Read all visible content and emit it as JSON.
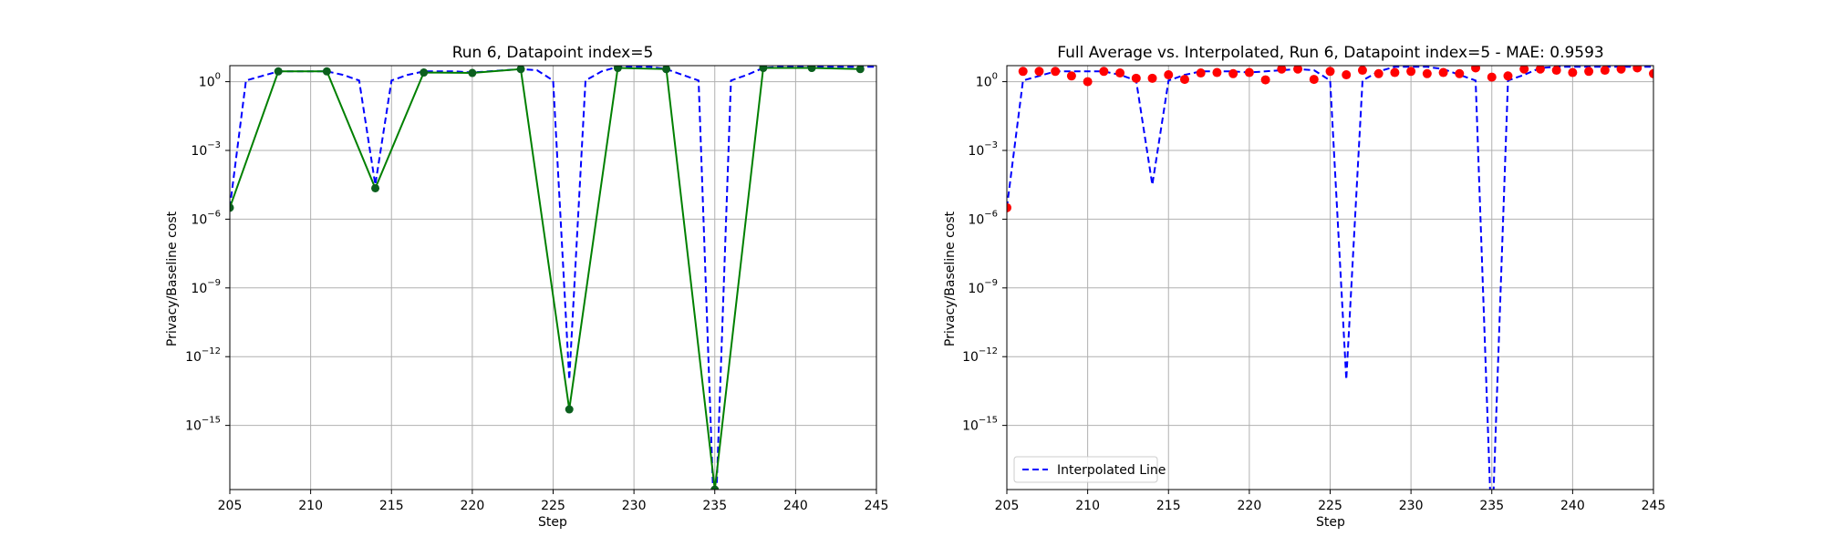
{
  "chart_data": [
    {
      "type": "line",
      "title": "Run 6, Datapoint index=5",
      "xlabel": "Step",
      "ylabel": "Privacy/Baseline cost",
      "yscale": "log",
      "xlim": [
        205,
        245
      ],
      "ylim_exp": [
        -17.8,
        0.7
      ],
      "xticks": [
        "205",
        "210",
        "215",
        "220",
        "225",
        "230",
        "235",
        "240",
        "245"
      ],
      "yticks": [
        {
          "base": "10",
          "exp": "0"
        },
        {
          "base": "10",
          "exp": "−3"
        },
        {
          "base": "10",
          "exp": "−6"
        },
        {
          "base": "10",
          "exp": "−9"
        },
        {
          "base": "10",
          "exp": "−12"
        },
        {
          "base": "10",
          "exp": "−15"
        }
      ],
      "grid": true,
      "series": [
        {
          "style": "dashed",
          "color": "#0000ff",
          "x": [
            205,
            206,
            207,
            208,
            209,
            210,
            211,
            212,
            213,
            214,
            215,
            216,
            217,
            218,
            219,
            220,
            221,
            222,
            223,
            224,
            225,
            226,
            227,
            228,
            229,
            230,
            231,
            232,
            233,
            234,
            235,
            236,
            237,
            238,
            239,
            240,
            241,
            242,
            243,
            244,
            245
          ],
          "log10_y": [
            -5.5,
            0.05,
            0.25,
            0.45,
            0.45,
            0.45,
            0.45,
            0.3,
            0.05,
            -4.5,
            0.05,
            0.3,
            0.45,
            0.45,
            0.45,
            0.4,
            0.45,
            0.5,
            0.55,
            0.5,
            0.05,
            -13.0,
            0.05,
            0.45,
            0.65,
            0.65,
            0.65,
            0.55,
            0.3,
            0.05,
            -20,
            0.05,
            0.3,
            0.6,
            0.65,
            0.65,
            0.65,
            0.65,
            0.65,
            0.65,
            0.65
          ]
        },
        {
          "style": "solid-markers",
          "color": "#008000",
          "marker_color": "#0b5f1e",
          "x": [
            205,
            208,
            211,
            214,
            217,
            220,
            223,
            226,
            229,
            232,
            235,
            238,
            241,
            244
          ],
          "log10_y": [
            -5.5,
            0.45,
            0.45,
            -4.65,
            0.4,
            0.38,
            0.55,
            -14.3,
            0.6,
            0.55,
            -17.8,
            0.6,
            0.6,
            0.55
          ]
        }
      ]
    },
    {
      "type": "line",
      "title": "Full Average vs. Interpolated, Run 6, Datapoint index=5 - MAE: 0.9593",
      "xlabel": "Step",
      "ylabel": "Privacy/Baseline cost",
      "yscale": "log",
      "xlim": [
        205,
        245
      ],
      "ylim_exp": [
        -17.8,
        0.7
      ],
      "xticks": [
        "205",
        "210",
        "215",
        "220",
        "225",
        "230",
        "235",
        "240",
        "245"
      ],
      "yticks": [
        {
          "base": "10",
          "exp": "0"
        },
        {
          "base": "10",
          "exp": "−3"
        },
        {
          "base": "10",
          "exp": "−6"
        },
        {
          "base": "10",
          "exp": "−9"
        },
        {
          "base": "10",
          "exp": "−12"
        },
        {
          "base": "10",
          "exp": "−15"
        }
      ],
      "grid": true,
      "legend": {
        "position": "lower-left",
        "label": "Interpolated Line"
      },
      "series": [
        {
          "name": "Interpolated Line",
          "style": "dashed",
          "color": "#0000ff",
          "x": [
            205,
            206,
            207,
            208,
            209,
            210,
            211,
            212,
            213,
            214,
            215,
            216,
            217,
            218,
            219,
            220,
            221,
            222,
            223,
            224,
            225,
            226,
            227,
            228,
            229,
            230,
            231,
            232,
            233,
            234,
            235,
            236,
            237,
            238,
            239,
            240,
            241,
            242,
            243,
            244,
            245
          ],
          "log10_y": [
            -5.5,
            0.05,
            0.25,
            0.45,
            0.45,
            0.45,
            0.45,
            0.3,
            0.05,
            -4.5,
            0.05,
            0.3,
            0.45,
            0.45,
            0.45,
            0.4,
            0.45,
            0.5,
            0.55,
            0.5,
            0.05,
            -13.0,
            0.05,
            0.45,
            0.65,
            0.65,
            0.65,
            0.55,
            0.3,
            0.05,
            -20,
            0.05,
            0.3,
            0.6,
            0.65,
            0.65,
            0.65,
            0.65,
            0.65,
            0.65,
            0.65
          ]
        },
        {
          "style": "scatter",
          "color": "#ff0000",
          "x": [
            205,
            206,
            207,
            208,
            209,
            210,
            211,
            212,
            213,
            214,
            215,
            216,
            217,
            218,
            219,
            220,
            221,
            222,
            223,
            224,
            225,
            226,
            227,
            228,
            229,
            230,
            231,
            232,
            233,
            234,
            235,
            236,
            237,
            238,
            239,
            240,
            241,
            242,
            243,
            244,
            245
          ],
          "log10_y": [
            -5.5,
            0.45,
            0.45,
            0.45,
            0.25,
            0.0,
            0.45,
            0.38,
            0.15,
            0.15,
            0.3,
            0.1,
            0.38,
            0.4,
            0.35,
            0.4,
            0.08,
            0.55,
            0.55,
            0.1,
            0.45,
            0.3,
            0.5,
            0.35,
            0.4,
            0.45,
            0.35,
            0.4,
            0.35,
            0.6,
            0.2,
            0.25,
            0.55,
            0.55,
            0.5,
            0.4,
            0.45,
            0.5,
            0.55,
            0.6,
            0.35
          ]
        }
      ]
    }
  ]
}
